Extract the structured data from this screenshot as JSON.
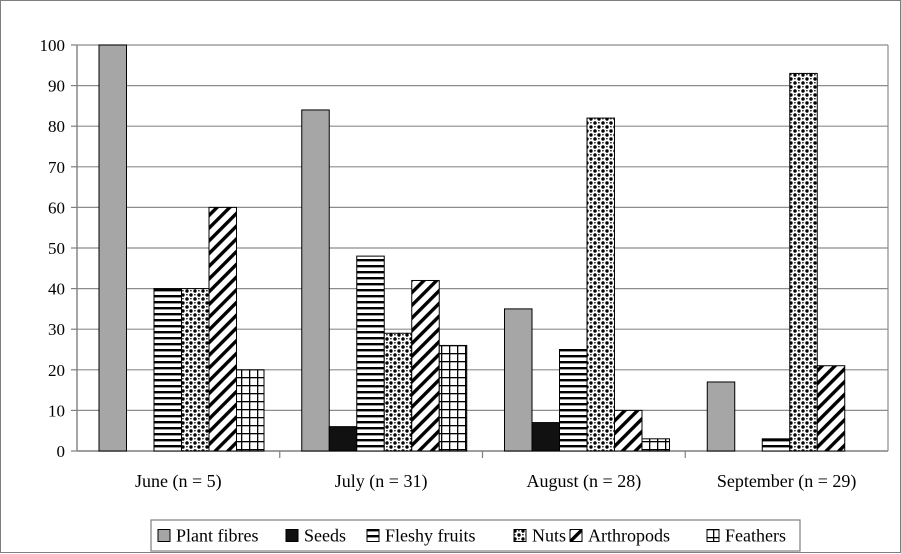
{
  "chart_data": {
    "type": "bar",
    "categories": [
      "June (n = 5)",
      "July (n = 31)",
      "August (n = 28)",
      "September (n = 29)"
    ],
    "series": [
      {
        "name": "Plant fibres",
        "values": [
          100,
          84,
          35,
          17
        ],
        "pattern": "solid-gray",
        "color": "#a6a6a6"
      },
      {
        "name": "Seeds",
        "values": [
          0,
          6,
          7,
          0
        ],
        "pattern": "solid-black",
        "color": "#111111"
      },
      {
        "name": "Fleshy fruits",
        "values": [
          40,
          48,
          25,
          3
        ],
        "pattern": "horizontal-lines",
        "color": "#000000"
      },
      {
        "name": "Nuts",
        "values": [
          40,
          29,
          82,
          93
        ],
        "pattern": "dots",
        "color": "#000000"
      },
      {
        "name": "Arthropods",
        "values": [
          60,
          42,
          10,
          21
        ],
        "pattern": "diagonal-lines",
        "color": "#000000"
      },
      {
        "name": "Feathers",
        "values": [
          20,
          26,
          3,
          0
        ],
        "pattern": "grid",
        "color": "#000000"
      }
    ],
    "title": "",
    "xlabel": "",
    "ylabel": "",
    "ylim": [
      0,
      100
    ],
    "yticks": [
      "0",
      "10",
      "20",
      "30",
      "40",
      "50",
      "60",
      "70",
      "80",
      "90",
      "100"
    ],
    "grid": true,
    "legend_placement": "bottom"
  }
}
